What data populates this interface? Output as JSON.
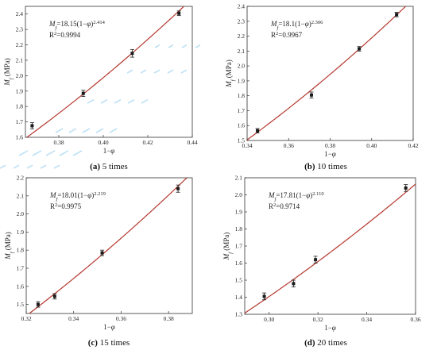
{
  "theme": {
    "line_color": "#b5382f",
    "marker_color": "#1a1a1a",
    "watermark_color": "#a9d6f2"
  },
  "chart_data": [
    {
      "type": "scatter",
      "caption": {
        "label": "(a)",
        "text": " 5 times"
      },
      "xlabel": "1−φ",
      "ylabel": "Mf (MPa)",
      "xlim": [
        0.365,
        0.44
      ],
      "ylim": [
        1.6,
        2.45
      ],
      "xticks": [
        0.38,
        0.4,
        0.42,
        0.44
      ],
      "yticks": [
        1.6,
        1.7,
        1.8,
        1.9,
        2.0,
        2.1,
        2.2,
        2.3,
        2.4
      ],
      "equation": "Mf=18.15(1−φ)^2.414",
      "r2": "R2=0.9994",
      "fit": {
        "a": 18.15,
        "b": 2.414
      },
      "points": [
        {
          "x": 0.368,
          "y": 1.675,
          "err": 0.02
        },
        {
          "x": 0.391,
          "y": 1.885,
          "err": 0.02
        },
        {
          "x": 0.413,
          "y": 2.145,
          "err": 0.025
        },
        {
          "x": 0.434,
          "y": 2.405,
          "err": 0.015
        }
      ]
    },
    {
      "type": "scatter",
      "caption": {
        "label": "(b)",
        "text": " 10 times"
      },
      "xlabel": "1−φ",
      "ylabel": "Mf (MPa)",
      "xlim": [
        0.34,
        0.42
      ],
      "ylim": [
        1.5,
        2.4
      ],
      "xticks": [
        0.34,
        0.36,
        0.38,
        0.4,
        0.42
      ],
      "yticks": [
        1.5,
        1.6,
        1.7,
        1.8,
        1.9,
        2.0,
        2.1,
        2.2,
        2.3,
        2.4
      ],
      "equation": "Mf=18.1(1−φ)^2.306",
      "r2": "R2=0.9967",
      "fit": {
        "a": 18.1,
        "b": 2.306
      },
      "points": [
        {
          "x": 0.345,
          "y": 1.565,
          "err": 0.015
        },
        {
          "x": 0.371,
          "y": 1.805,
          "err": 0.02
        },
        {
          "x": 0.394,
          "y": 2.115,
          "err": 0.015
        },
        {
          "x": 0.412,
          "y": 2.345,
          "err": 0.015
        }
      ]
    },
    {
      "type": "scatter",
      "caption": {
        "label": "(c)",
        "text": " 15 times"
      },
      "xlabel": "1−φ",
      "ylabel": "Mf (MPa)",
      "xlim": [
        0.32,
        0.39
      ],
      "ylim": [
        1.45,
        2.2
      ],
      "xticks": [
        0.32,
        0.34,
        0.36,
        0.38
      ],
      "yticks": [
        1.5,
        1.6,
        1.7,
        1.8,
        1.9,
        2.0,
        2.1,
        2.2
      ],
      "equation": "Mf=18.01(1−φ)^2.219",
      "r2": "R2=0.9975",
      "fit": {
        "a": 18.01,
        "b": 2.219
      },
      "points": [
        {
          "x": 0.325,
          "y": 1.5,
          "err": 0.015
        },
        {
          "x": 0.332,
          "y": 1.545,
          "err": 0.015
        },
        {
          "x": 0.352,
          "y": 1.785,
          "err": 0.015
        },
        {
          "x": 0.384,
          "y": 2.14,
          "err": 0.02
        }
      ]
    },
    {
      "type": "scatter",
      "caption": {
        "label": "(d)",
        "text": " 20 times"
      },
      "xlabel": "1−φ",
      "ylabel": "Mf (MPa)",
      "xlim": [
        0.29,
        0.36
      ],
      "ylim": [
        1.3,
        2.1
      ],
      "xticks": [
        0.3,
        0.32,
        0.34,
        0.36
      ],
      "yticks": [
        1.3,
        1.4,
        1.5,
        1.6,
        1.7,
        1.8,
        1.9,
        2.0,
        2.1
      ],
      "equation": "Mf=17.81(1−φ)^2.110",
      "r2": "R2=0.9714",
      "fit": {
        "a": 17.81,
        "b": 2.11
      },
      "points": [
        {
          "x": 0.298,
          "y": 1.405,
          "err": 0.02
        },
        {
          "x": 0.31,
          "y": 1.48,
          "err": 0.02
        },
        {
          "x": 0.319,
          "y": 1.62,
          "err": 0.02
        },
        {
          "x": 0.356,
          "y": 2.04,
          "err": 0.02
        }
      ]
    }
  ]
}
